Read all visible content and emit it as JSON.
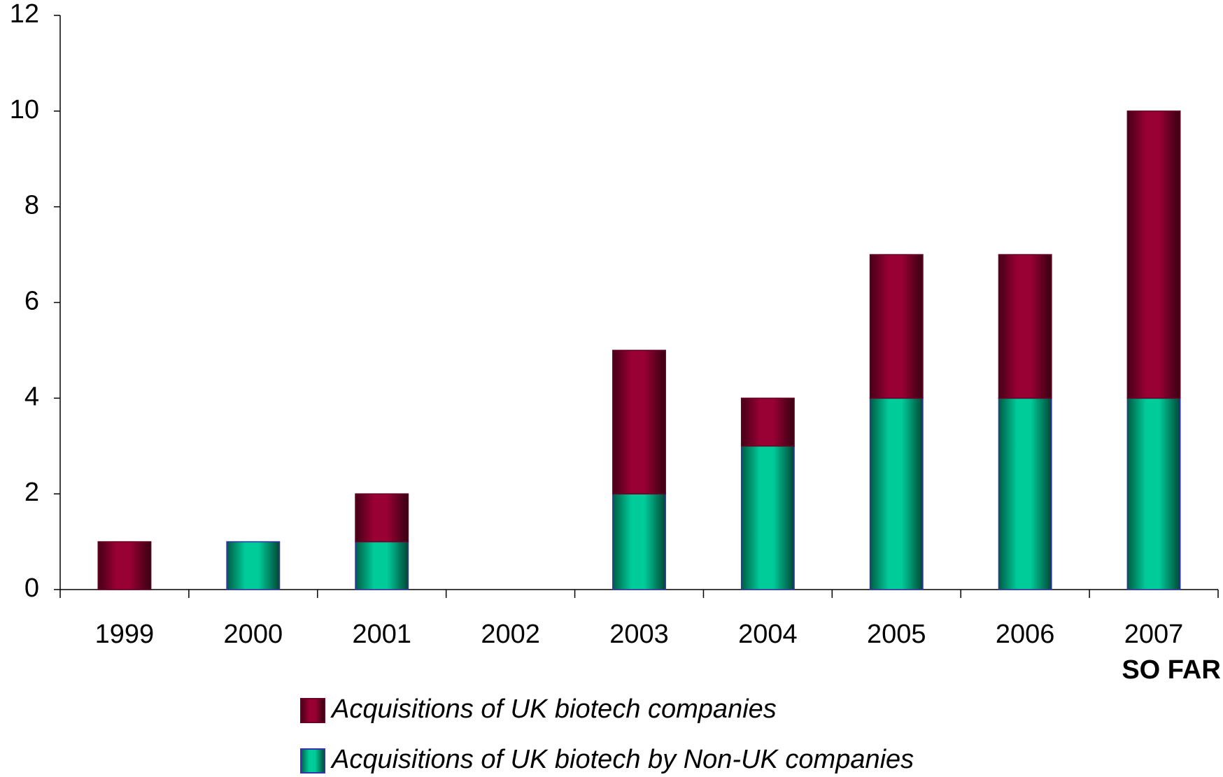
{
  "chart_data": {
    "type": "stacked_bar",
    "categories": [
      "1999",
      "2000",
      "2001",
      "2002",
      "2003",
      "2004",
      "2005",
      "2006",
      "2007"
    ],
    "category_note": "SO FAR",
    "series": [
      {
        "name": "Acquisitions of UK biotech by Non-UK companies",
        "color": "#00cc99",
        "values": [
          0,
          1,
          1,
          0,
          2,
          3,
          4,
          4,
          4
        ]
      },
      {
        "name": "Acquisitions of UK biotech companies",
        "color": "#990033",
        "values": [
          1,
          0,
          1,
          0,
          3,
          1,
          3,
          3,
          6
        ]
      }
    ],
    "legend_order": [
      1,
      0
    ],
    "ylim": [
      0,
      12
    ],
    "yticks": [
      0,
      2,
      4,
      6,
      8,
      10,
      12
    ],
    "grid": false
  }
}
